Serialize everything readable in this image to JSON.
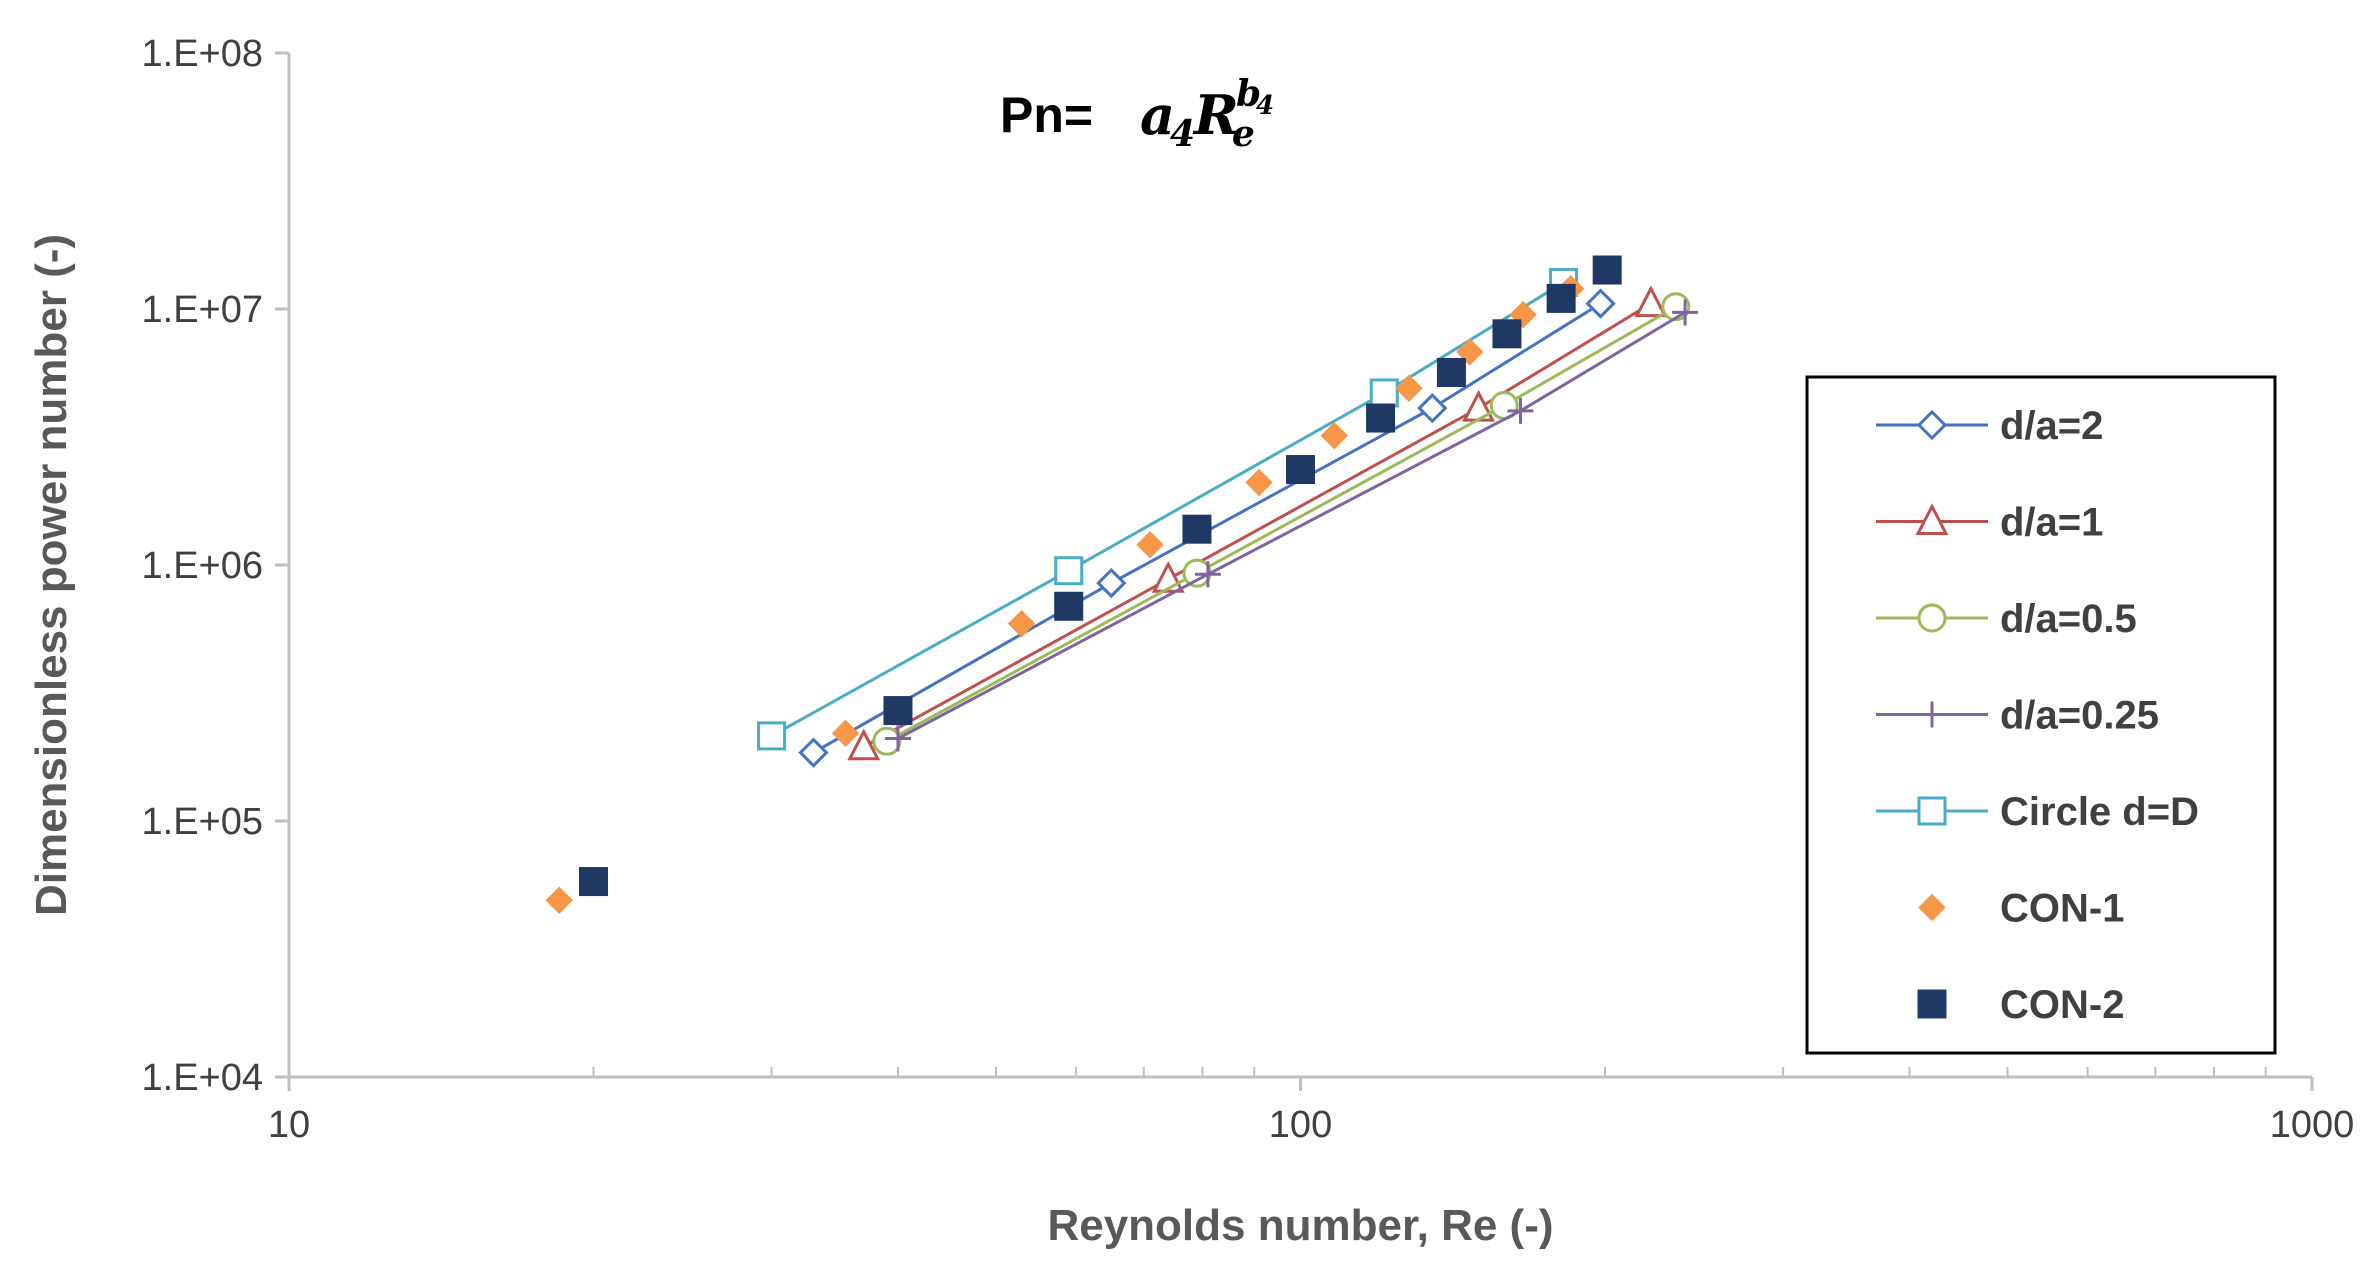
{
  "chart_data": {
    "type": "scatter",
    "xscale": "log",
    "yscale": "log",
    "xlim": [
      10,
      1000
    ],
    "ylim": [
      10000,
      100000000
    ],
    "xlabel": "Reynolds number, Re (-)",
    "ylabel": "Dimensionless power number (-)",
    "x_ticks": [
      {
        "value": 10,
        "label": "10"
      },
      {
        "value": 100,
        "label": "100"
      },
      {
        "value": 1000,
        "label": "1000"
      }
    ],
    "y_ticks": [
      {
        "value": 10000,
        "label": "1.E+04"
      },
      {
        "value": 100000,
        "label": "1.E+05"
      },
      {
        "value": 1000000,
        "label": "1.E+06"
      },
      {
        "value": 10000000,
        "label": "1.E+07"
      },
      {
        "value": 100000000,
        "label": "1.E+08"
      }
    ],
    "title": {
      "prefix": "Pn=",
      "base": "a",
      "base_sub": "4",
      "var": "R",
      "var_sub": "e",
      "exp": "b",
      "exp_sub": "4"
    },
    "legend_position": "right",
    "series": [
      {
        "name": "d/a=2",
        "color": "#4472C4",
        "marker": "diamond-open",
        "line": true,
        "x": [
          33,
          65,
          135,
          198
        ],
        "y": [
          185000,
          850000,
          4100000,
          10500000
        ]
      },
      {
        "name": "d/a=1",
        "color": "#C0504D",
        "marker": "triangle-open",
        "line": true,
        "x": [
          37,
          74,
          150,
          222
        ],
        "y": [
          195000,
          880000,
          4100000,
          10500000
        ]
      },
      {
        "name": "d/a=0.5",
        "color": "#9BBB59",
        "marker": "circle-open",
        "line": true,
        "x": [
          39,
          79,
          159,
          235
        ],
        "y": [
          205000,
          930000,
          4200000,
          10200000
        ]
      },
      {
        "name": "d/a=0.25",
        "color": "#8064A2",
        "marker": "plus",
        "line": true,
        "x": [
          40,
          81,
          165,
          240
        ],
        "y": [
          210000,
          920000,
          4000000,
          9700000
        ]
      },
      {
        "name": "Circle d=D",
        "color": "#4BACC6",
        "marker": "square-open",
        "line": true,
        "x": [
          30,
          59,
          121,
          182
        ],
        "y": [
          215000,
          950000,
          4700000,
          12700000
        ]
      },
      {
        "name": "CON-1",
        "color": "#F79646",
        "marker": "diamond-filled",
        "line": false,
        "x": [
          18.5,
          35.5,
          53,
          71,
          91,
          108,
          128,
          147,
          166,
          185
        ],
        "y": [
          49000,
          220000,
          590000,
          1200000,
          2100000,
          3200000,
          4900000,
          6800000,
          9500000,
          12000000
        ]
      },
      {
        "name": "CON-2",
        "color": "#1F3864",
        "marker": "square-filled",
        "line": false,
        "x": [
          20,
          40,
          59,
          79,
          100,
          120,
          141,
          160,
          181,
          201
        ],
        "y": [
          58000,
          270000,
          690000,
          1380000,
          2360000,
          3750000,
          5650000,
          8000000,
          11000000,
          14200000
        ]
      }
    ]
  }
}
